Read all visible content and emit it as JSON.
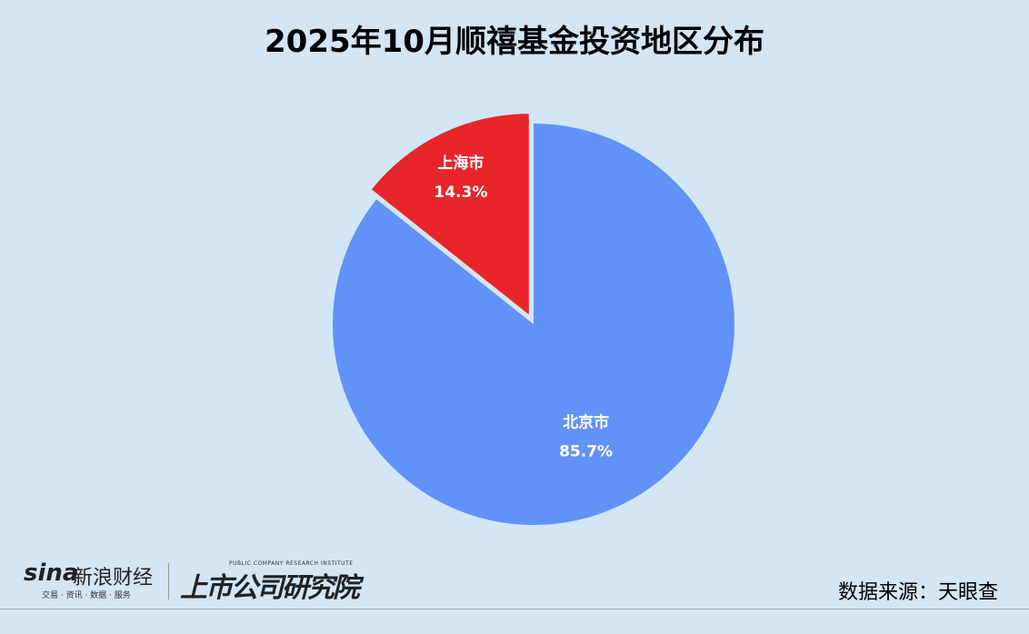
{
  "chart_data": {
    "type": "pie",
    "title": "2025年10月顺禧基金投资地区分布",
    "slices": [
      {
        "label": "北京市",
        "value": 85.7,
        "display": "85.7%",
        "color": "#6192f7",
        "exploded": false
      },
      {
        "label": "上海市",
        "value": 14.3,
        "display": "14.3%",
        "color": "#e8262a",
        "exploded": true
      }
    ],
    "start_angle": "top",
    "direction": "clockwise-from-Beijing"
  },
  "footer": {
    "sina_logo": "sina",
    "sina_name": "新浪财经",
    "sina_tagline": "交易 · 资讯 · 数据 · 服务",
    "institute_en": "PUBLIC COMPANY RESEARCH INSTITUTE",
    "institute_cn": "上市公司研究院",
    "source": "数据来源：天眼查"
  }
}
